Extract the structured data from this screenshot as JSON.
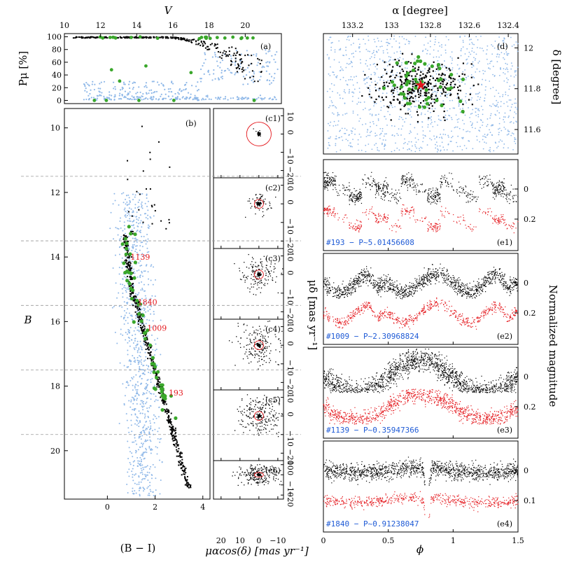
{
  "chart_data": {
    "type": "scatter",
    "colors": {
      "members": "#000000",
      "field": "#8fb8e8",
      "variables": "#3aa72b",
      "lightcurve_second": "#e4161b",
      "labels_blue": "#1f5bd6",
      "labels_red": "#e4161b",
      "circle": "#e4161b",
      "star": "#e4161b",
      "dashed": "#999999"
    },
    "panel_a": {
      "tag": "(a)",
      "ylabel": "Pμ [%]",
      "xlabel_top": "V",
      "xlim": [
        10,
        22
      ],
      "ylim": [
        -5,
        105
      ],
      "xticks": [
        "10",
        "12",
        "14",
        "16",
        "18",
        "20"
      ],
      "yticks": [
        "0",
        "20",
        "40",
        "60",
        "80",
        "100"
      ]
    },
    "panel_b": {
      "tag": "(b)",
      "xlabel": "(B − I)",
      "ylabel": "B",
      "xlim": [
        -1.8,
        4.3
      ],
      "ylim": [
        21.5,
        9.4
      ],
      "xticks": [
        "0",
        "2",
        "4"
      ],
      "yticks": [
        "10",
        "12",
        "14",
        "16",
        "18",
        "20"
      ],
      "bin_edges": [
        11.5,
        13.5,
        15.5,
        17.5,
        19.5
      ],
      "labeled_stars": [
        {
          "id": "1139",
          "bi": 0.88,
          "b": 14.0
        },
        {
          "id": "1840",
          "bi": 1.18,
          "b": 15.4
        },
        {
          "id": "1009",
          "bi": 1.58,
          "b": 16.2
        },
        {
          "id": "193",
          "bi": 2.48,
          "b": 18.2
        }
      ]
    },
    "panels_c": {
      "tags": [
        "(c1)",
        "(c2)",
        "(c3)",
        "(c4)",
        "(c5)",
        "(c6)"
      ],
      "xlabel": "μαcos(δ) [mas yr⁻¹]",
      "ylabel": "μδ [mas yr⁻¹]",
      "xlim": [
        24,
        -13
      ],
      "ylim": [
        -24,
        14
      ],
      "xticks": [
        "20",
        "10",
        "0",
        "−10"
      ],
      "yticks": [
        "10",
        "0",
        "−10",
        "−20"
      ],
      "circle_radii": [
        6.5,
        2.4,
        2.4,
        2.4,
        2.4,
        2.4
      ]
    },
    "panel_d": {
      "tag": "(d)",
      "xlabel_top": "α [degree]",
      "ylabel": "δ [degree]",
      "xlim": [
        133.35,
        132.35
      ],
      "ylim": [
        11.48,
        12.07
      ],
      "xticks": [
        "133.2",
        "133",
        "132.8",
        "132.6",
        "132.4"
      ],
      "yticks": [
        "11.6",
        "11.8",
        "12"
      ],
      "cluster_center": [
        132.85,
        11.817
      ]
    },
    "panels_e": {
      "xlabel": "ϕ",
      "ylabel": "Normalized magnitude",
      "xlim": [
        0,
        1.5
      ],
      "xticks": [
        "0",
        "0.5",
        "1",
        "1.5"
      ],
      "curves": [
        {
          "tag": "(e1)",
          "label": "#193 − P~5.01456608",
          "period": 5.01456608,
          "offset_label": "0.2",
          "zero_label": "0"
        },
        {
          "tag": "(e2)",
          "label": "#1009 − P~2.30968824",
          "period": 2.30968824,
          "offset_label": "0.2",
          "zero_label": "0"
        },
        {
          "tag": "(e3)",
          "label": "#1139 − P~0.35947366",
          "period": 0.35947366,
          "offset_label": "0.2",
          "zero_label": "0"
        },
        {
          "tag": "(e4)",
          "label": "#1840 − P~0.91238047",
          "period": 0.91238047,
          "offset_label": "0.1",
          "zero_label": "0"
        }
      ]
    }
  }
}
